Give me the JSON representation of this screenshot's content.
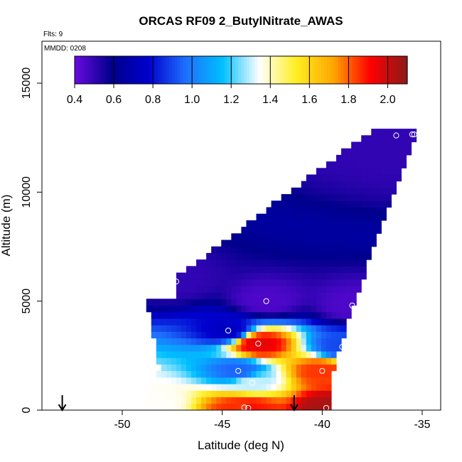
{
  "chart_data": {
    "type": "heatmap",
    "title": "ORCAS RF09 2_ButylNitrate_AWAS",
    "notes": {
      "flights": "Flts: 9",
      "date": "MMDD: 0208"
    },
    "xlabel": "Latitude (deg N)",
    "ylabel": "Altitude (m)",
    "xlim": [
      -54.5,
      -34
    ],
    "ylim": [
      0,
      16700
    ],
    "x_ticks": [
      -50,
      -45,
      -40,
      -35
    ],
    "x_tick_labels": [
      "-50",
      "-45",
      "-40",
      "-35"
    ],
    "y_ticks": [
      0,
      5000,
      10000,
      15000
    ],
    "y_tick_labels": [
      "0",
      "5000",
      "10000",
      "15000"
    ],
    "colorbar": {
      "range": [
        0.4,
        2.1
      ],
      "ticks": [
        0.4,
        0.6,
        0.8,
        1.0,
        1.2,
        1.4,
        1.6,
        1.8,
        2.0
      ],
      "tick_labels": [
        "0.4",
        "0.6",
        "0.8",
        "1.0",
        "1.2",
        "1.4",
        "1.6",
        "1.8",
        "2.0"
      ],
      "colors": [
        "#6a0ae0",
        "#00008b",
        "#0000cd",
        "#1e6fff",
        "#00bfff",
        "#ffffff",
        "#ffee22",
        "#ffa500",
        "#ff0000",
        "#8b1a1a"
      ]
    },
    "field": {
      "x_step": 0.25,
      "y_step": 300,
      "x_range": [
        -48.8,
        -35.3
      ],
      "y_range": [
        0,
        12800
      ]
    },
    "samples": [
      {
        "lat": -36.3,
        "alt": 12600,
        "value": 0.5
      },
      {
        "lat": -35.5,
        "alt": 12650,
        "value": 0.5
      },
      {
        "lat": -35.4,
        "alt": 12650,
        "value": 0.5
      },
      {
        "lat": -42.8,
        "alt": 5000,
        "value": 0.45
      },
      {
        "lat": -47.3,
        "alt": 5900,
        "value": 0.5
      },
      {
        "lat": -38.5,
        "alt": 4800,
        "value": 0.45
      },
      {
        "lat": -44.7,
        "alt": 3650,
        "value": 0.75
      },
      {
        "lat": -39.0,
        "alt": 2900,
        "value": 0.9
      },
      {
        "lat": -43.2,
        "alt": 3050,
        "value": 1.95
      },
      {
        "lat": -44.2,
        "alt": 1800,
        "value": 0.95
      },
      {
        "lat": -40.0,
        "alt": 1800,
        "value": 1.85
      },
      {
        "lat": -43.5,
        "alt": 1250,
        "value": 1.3
      },
      {
        "lat": -48.3,
        "alt": 350,
        "value": 1.35
      },
      {
        "lat": -43.9,
        "alt": 120,
        "value": 1.85
      },
      {
        "lat": -43.7,
        "alt": 100,
        "value": 1.9
      },
      {
        "lat": -39.8,
        "alt": 100,
        "value": 2.05
      }
    ],
    "arrows": [
      {
        "lat": -53.0
      },
      {
        "lat": -41.4
      }
    ]
  }
}
